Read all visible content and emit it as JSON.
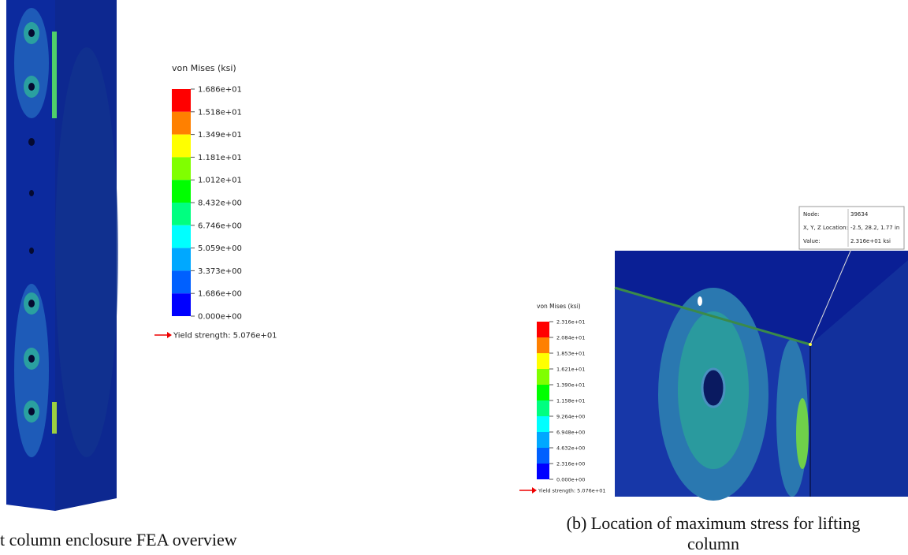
{
  "figure_a": {
    "legend": {
      "title": "von Mises (ksi)",
      "labels": [
        "1.686e+01",
        "1.518e+01",
        "1.349e+01",
        "1.181e+01",
        "1.012e+01",
        "8.432e+00",
        "6.746e+00",
        "5.059e+00",
        "3.373e+00",
        "1.686e+00",
        "0.000e+00"
      ],
      "yield": "Yield strength: 5.076e+01"
    },
    "caption": "t column enclosure FEA overview"
  },
  "figure_b": {
    "legend": {
      "title": "von Mises (ksi)",
      "labels": [
        "2.316e+01",
        "2.084e+01",
        "1.853e+01",
        "1.621e+01",
        "1.390e+01",
        "1.158e+01",
        "9.264e+00",
        "6.948e+00",
        "4.632e+00",
        "2.316e+00",
        "0.000e+00"
      ],
      "yield": "Yield strength: 5.076e+01"
    },
    "probe": {
      "rows": [
        [
          "Node:",
          "39634"
        ],
        [
          "X, Y, Z Location:",
          "-2.5, 28.2, 1.77 in"
        ],
        [
          "Value:",
          "2.316e+01 ksi"
        ]
      ]
    },
    "caption": [
      "(b) Location of maximum stress for lifting",
      "column"
    ]
  }
}
